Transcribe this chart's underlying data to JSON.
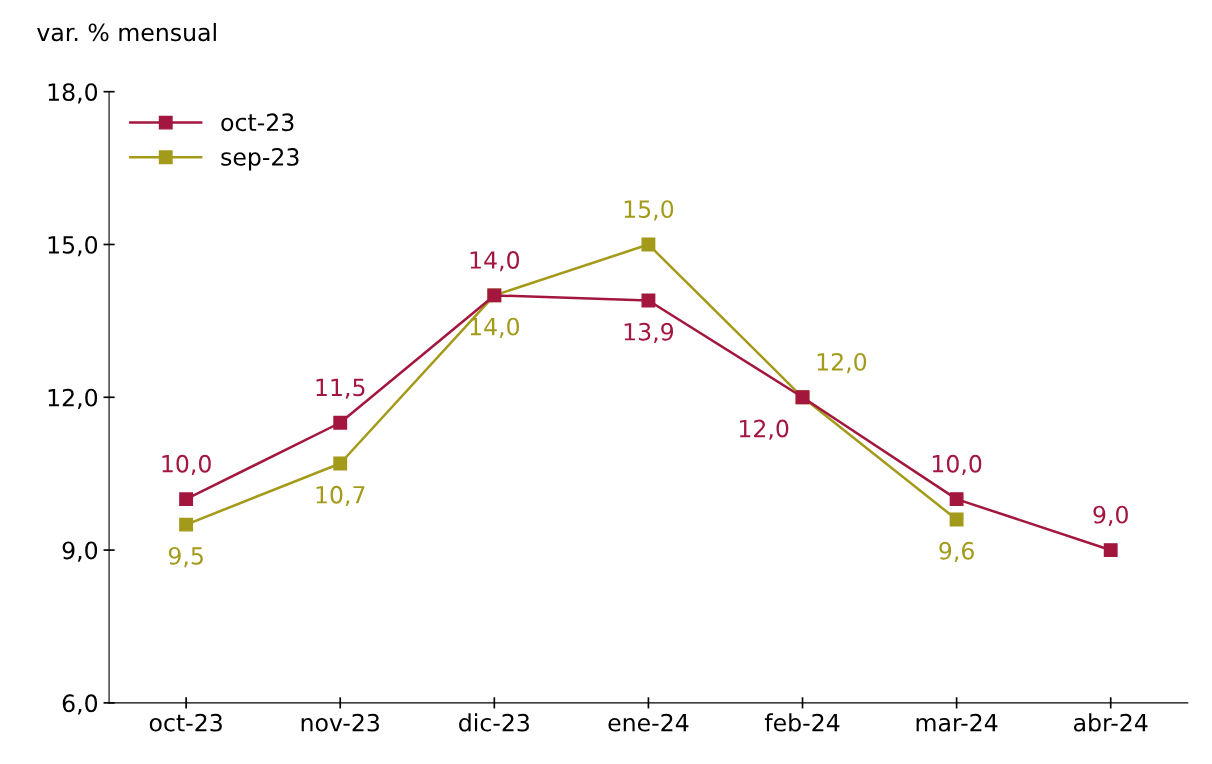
{
  "chart_data": {
    "type": "line",
    "ylabel": "var. % mensual",
    "categories": [
      "oct-23",
      "nov-23",
      "dic-23",
      "ene-24",
      "feb-24",
      "mar-24",
      "abr-24"
    ],
    "series": [
      {
        "name": "oct-23",
        "color": "#a3173f",
        "values": [
          10.0,
          11.5,
          14.0,
          13.9,
          12.0,
          10.0,
          9.0
        ],
        "value_labels": [
          "10,0",
          "11,5",
          "14,0",
          "13,9",
          "12,0",
          "10,0",
          "9,0"
        ]
      },
      {
        "name": "sep-23",
        "color": "#a39a1a",
        "values": [
          9.5,
          10.7,
          14.0,
          15.0,
          12.0,
          9.6,
          null
        ],
        "value_labels": [
          "9,5",
          "10,7",
          "14,0",
          "15,0",
          "12,0",
          "9,6",
          null
        ]
      }
    ],
    "ylim": [
      6,
      18
    ],
    "yticks": [
      {
        "value": 6,
        "label": "6,0"
      },
      {
        "value": 9,
        "label": "9,0"
      },
      {
        "value": 12,
        "label": "12,0"
      },
      {
        "value": 15,
        "label": "15,0"
      },
      {
        "value": 18,
        "label": "18,0"
      }
    ],
    "grid": false,
    "legend": "top left",
    "marker": "square",
    "line_style": "solid"
  }
}
